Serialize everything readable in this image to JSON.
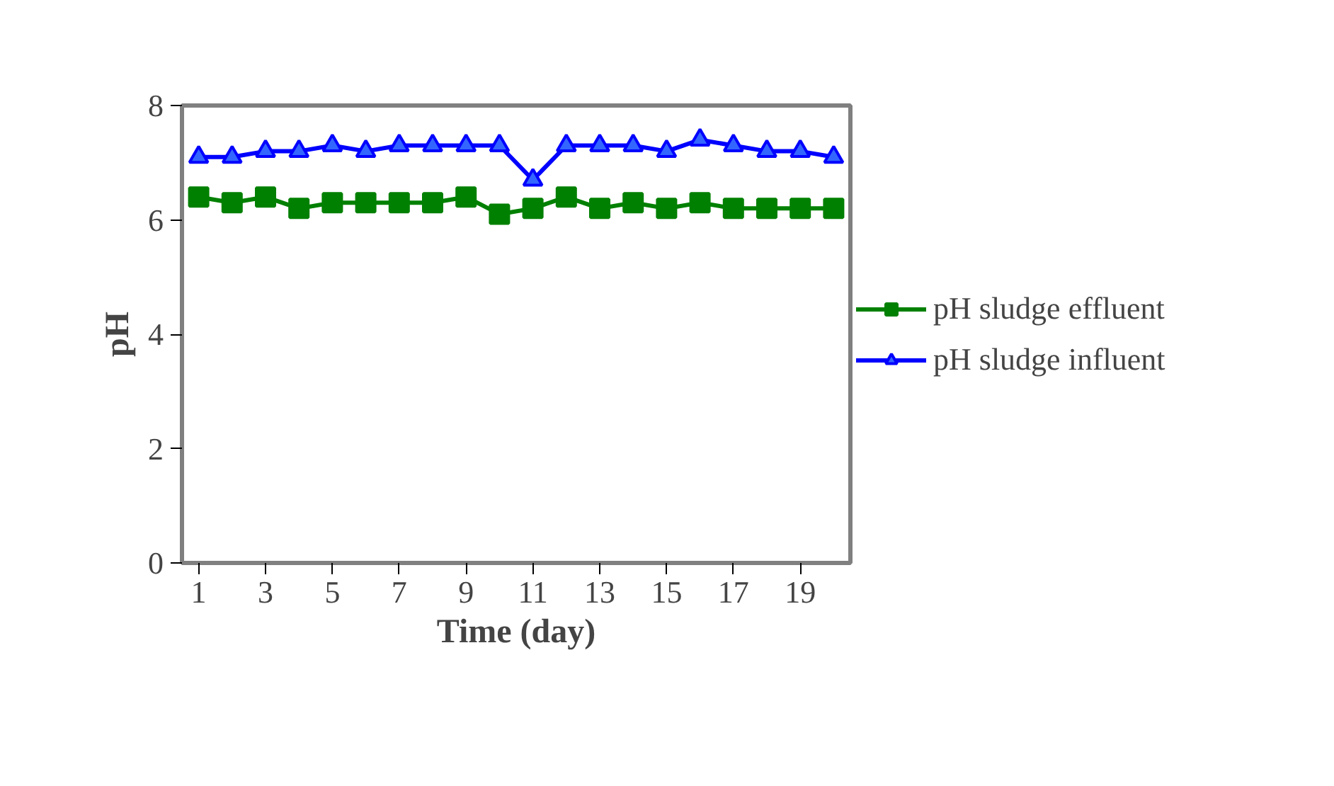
{
  "chart_data": {
    "type": "line",
    "xlabel": "Time (day)",
    "ylabel": "pH",
    "x": [
      1,
      2,
      3,
      4,
      5,
      6,
      7,
      8,
      9,
      10,
      11,
      12,
      13,
      14,
      15,
      16,
      17,
      18,
      19,
      20
    ],
    "xlim": [
      0.5,
      20.5
    ],
    "xticks": [
      1,
      3,
      5,
      7,
      9,
      11,
      13,
      15,
      17,
      19
    ],
    "ylim": [
      0,
      8
    ],
    "yticks": [
      0,
      2,
      4,
      6,
      8
    ],
    "grid": false,
    "legend": "right",
    "series": [
      {
        "name": "pH sludge effluent",
        "color": "#008000",
        "marker": "square",
        "values": [
          6.4,
          6.3,
          6.4,
          6.2,
          6.3,
          6.3,
          6.3,
          6.3,
          6.4,
          6.1,
          6.2,
          6.4,
          6.2,
          6.3,
          6.2,
          6.3,
          6.2,
          6.2,
          6.2,
          6.2
        ]
      },
      {
        "name": "pH sludge influent",
        "color": "#0000ff",
        "marker": "triangle",
        "values": [
          7.1,
          7.1,
          7.2,
          7.2,
          7.3,
          7.2,
          7.3,
          7.3,
          7.3,
          7.3,
          6.7,
          7.3,
          7.3,
          7.3,
          7.2,
          7.4,
          7.3,
          7.2,
          7.2,
          7.1
        ]
      }
    ]
  }
}
